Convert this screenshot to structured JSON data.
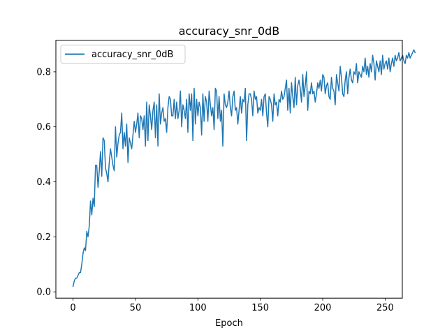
{
  "chart_data": {
    "type": "line",
    "title": "accuracy_snr_0dB",
    "xlabel": "Epoch",
    "ylabel": "",
    "xlim": [
      -13.75,
      263.75
    ],
    "ylim": [
      -0.023,
      0.915
    ],
    "xticks": [
      0,
      50,
      100,
      150,
      200,
      250
    ],
    "yticks": [
      0.0,
      0.2,
      0.4,
      0.6,
      0.8
    ],
    "ytick_labels": [
      "0.0",
      "0.2",
      "0.4",
      "0.6",
      "0.8"
    ],
    "grid": false,
    "legend": {
      "position": "upper-left",
      "entries": [
        "accuracy_snr_0dB"
      ]
    },
    "series": [
      {
        "name": "accuracy_snr_0dB",
        "color": "#1f77b4",
        "x_start": 0,
        "values": [
          0.02,
          0.04,
          0.05,
          0.05,
          0.06,
          0.07,
          0.07,
          0.1,
          0.14,
          0.16,
          0.15,
          0.22,
          0.2,
          0.24,
          0.33,
          0.28,
          0.34,
          0.31,
          0.46,
          0.46,
          0.38,
          0.44,
          0.51,
          0.42,
          0.56,
          0.55,
          0.45,
          0.43,
          0.4,
          0.47,
          0.52,
          0.49,
          0.46,
          0.44,
          0.6,
          0.49,
          0.54,
          0.57,
          0.58,
          0.65,
          0.52,
          0.58,
          0.53,
          0.61,
          0.47,
          0.56,
          0.54,
          0.52,
          0.57,
          0.62,
          0.58,
          0.61,
          0.65,
          0.56,
          0.64,
          0.63,
          0.59,
          0.64,
          0.53,
          0.69,
          0.55,
          0.68,
          0.64,
          0.59,
          0.66,
          0.69,
          0.56,
          0.68,
          0.53,
          0.72,
          0.61,
          0.65,
          0.67,
          0.62,
          0.63,
          0.58,
          0.67,
          0.71,
          0.7,
          0.64,
          0.64,
          0.7,
          0.63,
          0.69,
          0.63,
          0.66,
          0.73,
          0.6,
          0.68,
          0.66,
          0.63,
          0.7,
          0.58,
          0.72,
          0.66,
          0.72,
          0.55,
          0.74,
          0.61,
          0.7,
          0.64,
          0.69,
          0.67,
          0.57,
          0.72,
          0.62,
          0.71,
          0.69,
          0.62,
          0.73,
          0.68,
          0.64,
          0.67,
          0.59,
          0.74,
          0.73,
          0.63,
          0.71,
          0.62,
          0.66,
          0.53,
          0.72,
          0.68,
          0.67,
          0.69,
          0.73,
          0.67,
          0.64,
          0.71,
          0.73,
          0.66,
          0.67,
          0.61,
          0.66,
          0.71,
          0.65,
          0.7,
          0.69,
          0.74,
          0.55,
          0.68,
          0.72,
          0.72,
          0.7,
          0.64,
          0.73,
          0.7,
          0.71,
          0.65,
          0.67,
          0.66,
          0.7,
          0.64,
          0.71,
          0.72,
          0.65,
          0.6,
          0.71,
          0.7,
          0.68,
          0.62,
          0.72,
          0.68,
          0.69,
          0.64,
          0.7,
          0.69,
          0.73,
          0.7,
          0.71,
          0.74,
          0.77,
          0.66,
          0.74,
          0.65,
          0.76,
          0.71,
          0.67,
          0.78,
          0.68,
          0.75,
          0.77,
          0.74,
          0.69,
          0.79,
          0.71,
          0.75,
          0.8,
          0.66,
          0.73,
          0.72,
          0.76,
          0.72,
          0.73,
          0.69,
          0.72,
          0.76,
          0.74,
          0.77,
          0.73,
          0.79,
          0.78,
          0.72,
          0.75,
          0.76,
          0.71,
          0.7,
          0.78,
          0.74,
          0.73,
          0.68,
          0.79,
          0.76,
          0.73,
          0.82,
          0.78,
          0.72,
          0.71,
          0.77,
          0.8,
          0.72,
          0.78,
          0.81,
          0.77,
          0.76,
          0.8,
          0.79,
          0.83,
          0.76,
          0.8,
          0.79,
          0.78,
          0.82,
          0.8,
          0.85,
          0.79,
          0.82,
          0.78,
          0.83,
          0.8,
          0.86,
          0.83,
          0.77,
          0.84,
          0.82,
          0.8,
          0.84,
          0.79,
          0.86,
          0.81,
          0.83,
          0.84,
          0.81,
          0.85,
          0.8,
          0.83,
          0.85,
          0.82,
          0.86,
          0.84,
          0.85,
          0.87,
          0.84,
          0.85,
          0.86,
          0.84,
          0.83,
          0.86,
          0.85,
          0.87,
          0.85,
          0.86,
          0.87,
          0.88,
          0.87
        ]
      }
    ]
  }
}
